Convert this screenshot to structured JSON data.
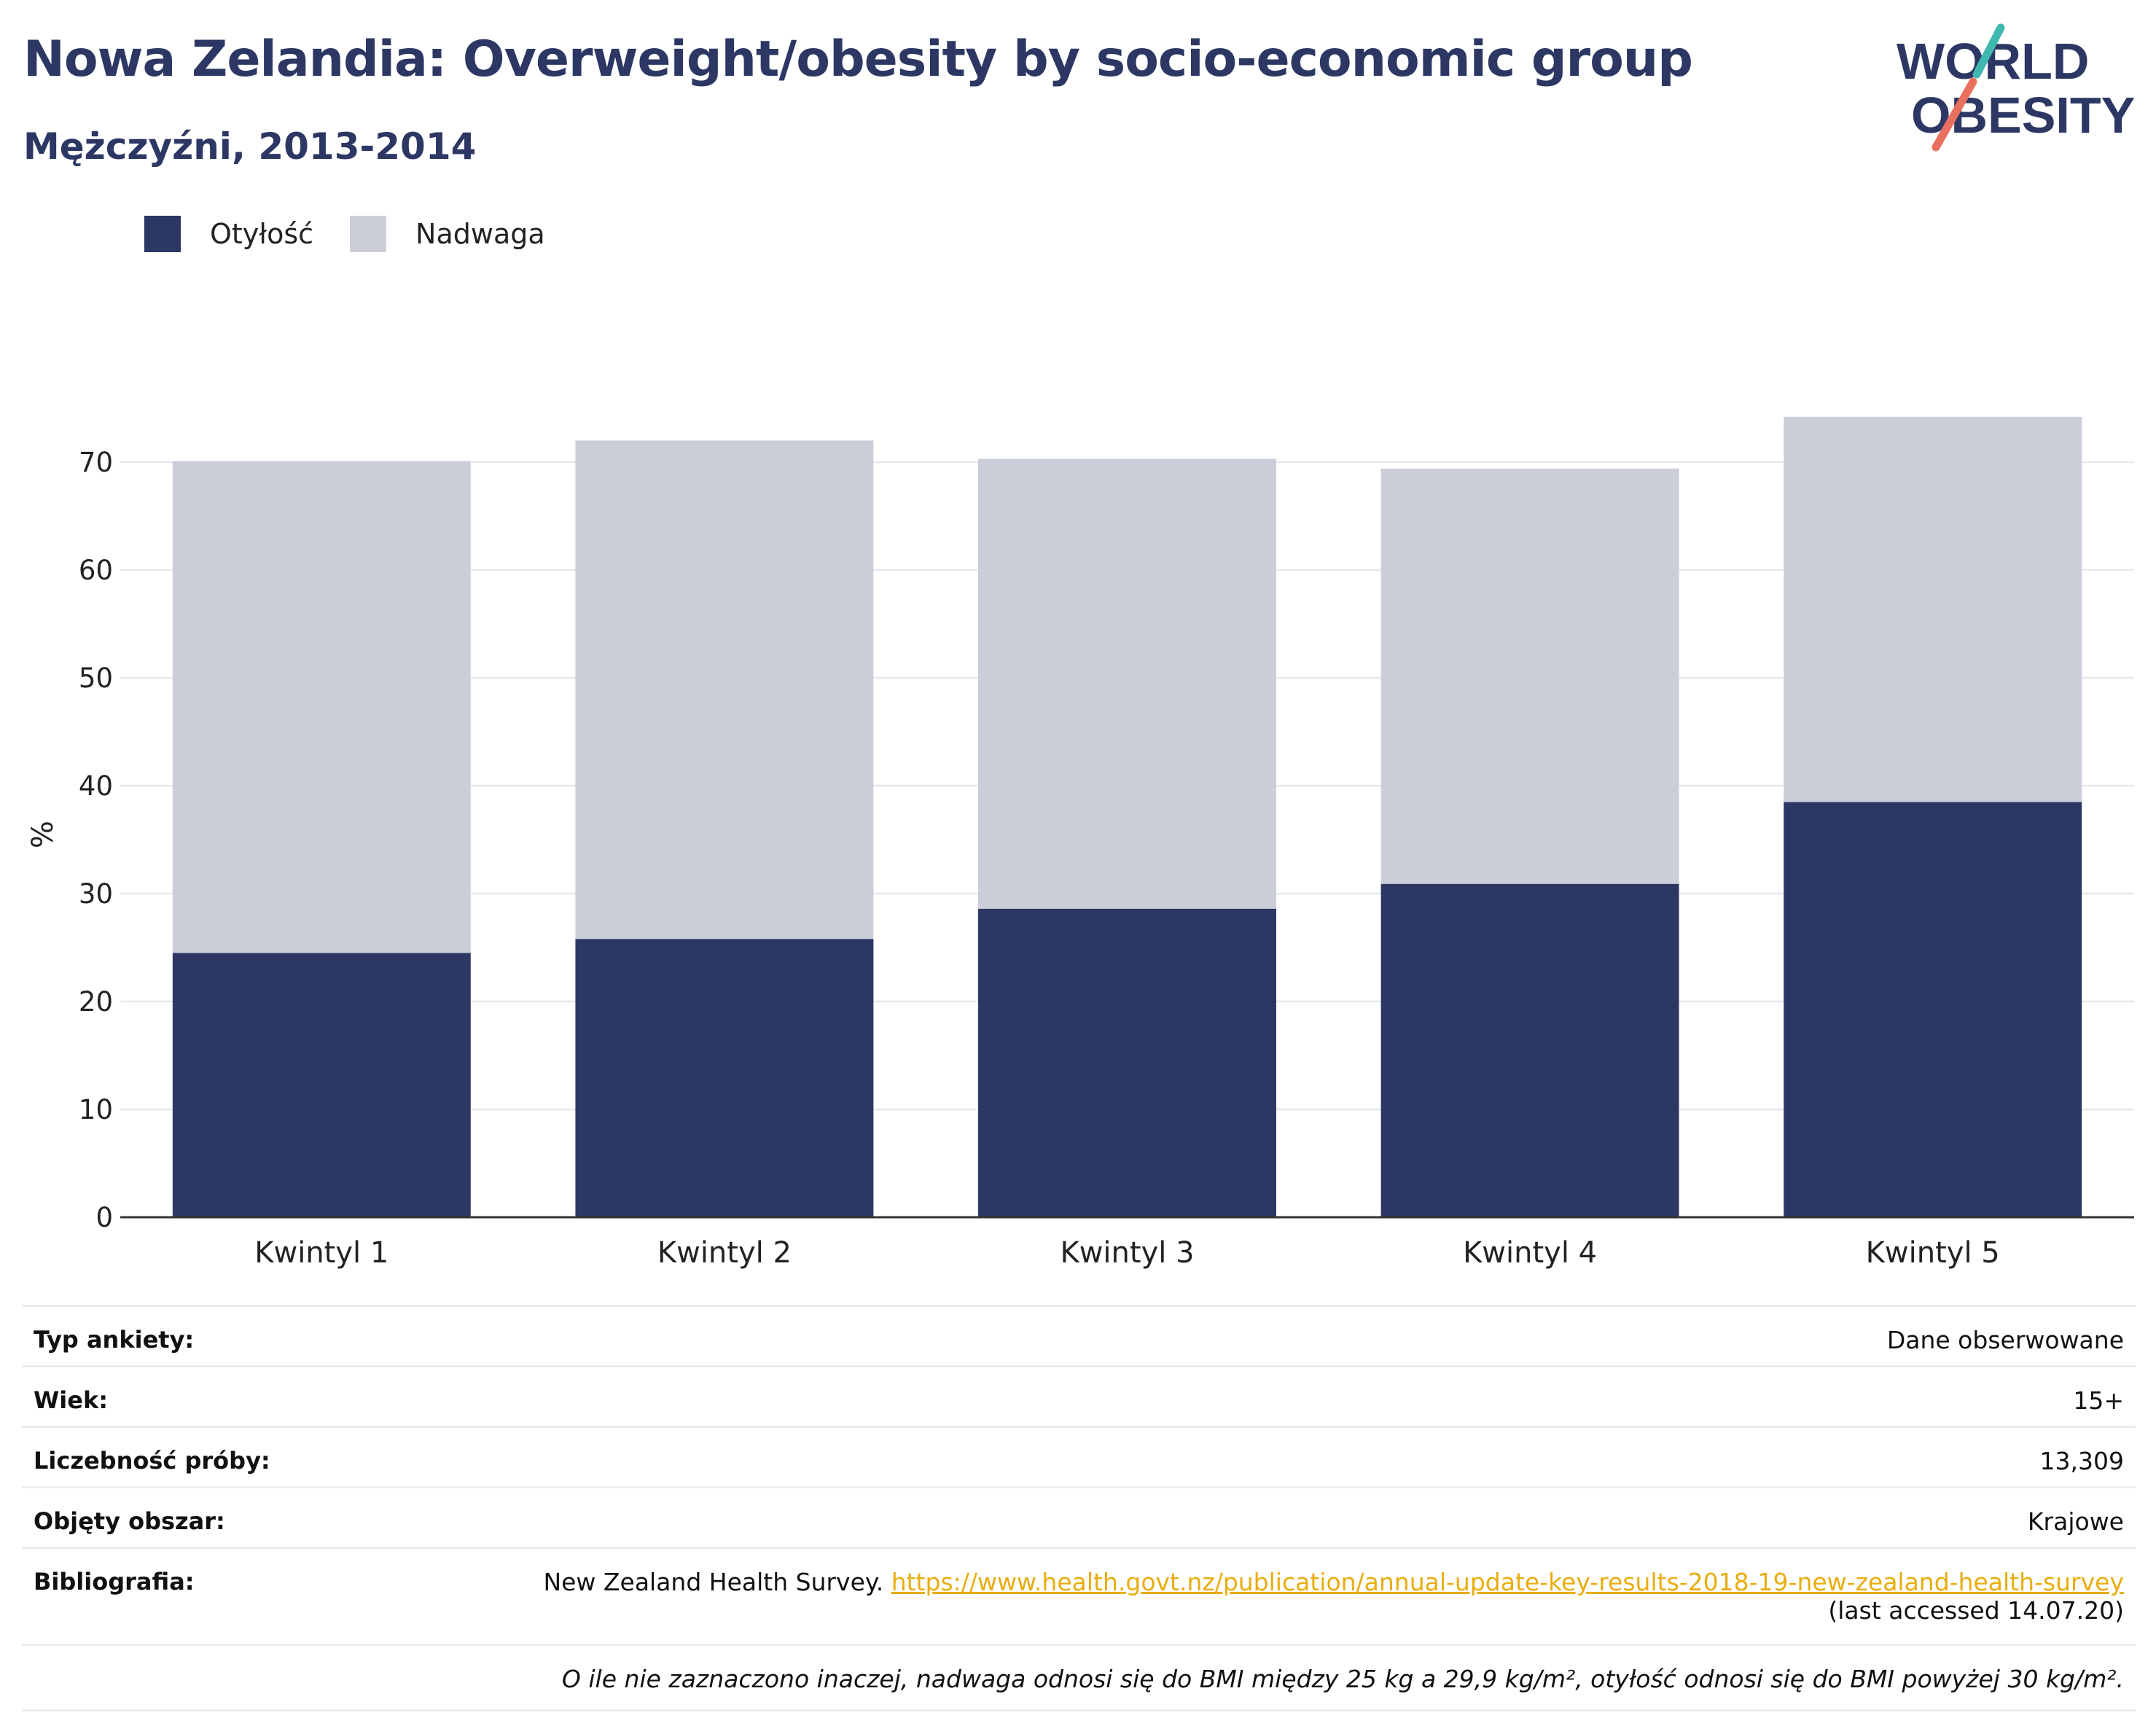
{
  "title": "Nowa Zelandia: Overweight/obesity by socio-economic group",
  "subtitle": "Mężczyźni, 2013-2014",
  "logo": {
    "line1": "WORLD",
    "line2": "OBESITY"
  },
  "colors": {
    "obesity": "#2c3764",
    "overweight": "#cbcdd9",
    "accent_teal": "#3fb8b0",
    "accent_coral": "#e8705f",
    "link": "#e8ad0f"
  },
  "chart_data": {
    "type": "bar",
    "stacked": true,
    "categories": [
      "Kwintyl 1",
      "Kwintyl 2",
      "Kwintyl 3",
      "Kwintyl 4",
      "Kwintyl 5"
    ],
    "series": [
      {
        "name": "Otyłość",
        "color": "#2c3764",
        "values": [
          24.5,
          25.8,
          28.6,
          30.9,
          38.5
        ]
      },
      {
        "name": "Nadwaga",
        "color": "#cbcdd9",
        "values": [
          45.6,
          46.2,
          41.7,
          38.5,
          35.7
        ]
      }
    ],
    "ylabel": "%",
    "ylim": [
      0,
      75
    ],
    "yticks": [
      0,
      10,
      20,
      30,
      40,
      50,
      60,
      70
    ],
    "grid": true,
    "legend": "top-left"
  },
  "meta": {
    "rows": [
      {
        "label": "Typ ankiety:",
        "value": "Dane obserwowane"
      },
      {
        "label": "Wiek:",
        "value": "15+"
      },
      {
        "label": "Liczebność próby:",
        "value": "13,309"
      },
      {
        "label": "Objęty obszar:",
        "value": "Krajowe"
      }
    ],
    "bibliography": {
      "label": "Bibliografia:",
      "text": "New Zealand Health Survey. ",
      "link": "https://www.health.govt.nz/publication/annual-update-key-results-2018-19-new-zealand-health-survey",
      "accessed": "(last accessed 14.07.20)"
    },
    "note": "O ile nie zaznaczono inaczej, nadwaga odnosi się do BMI między 25 kg a 29,9 kg/m², otyłość odnosi się do BMI powyżej 30 kg/m²."
  }
}
